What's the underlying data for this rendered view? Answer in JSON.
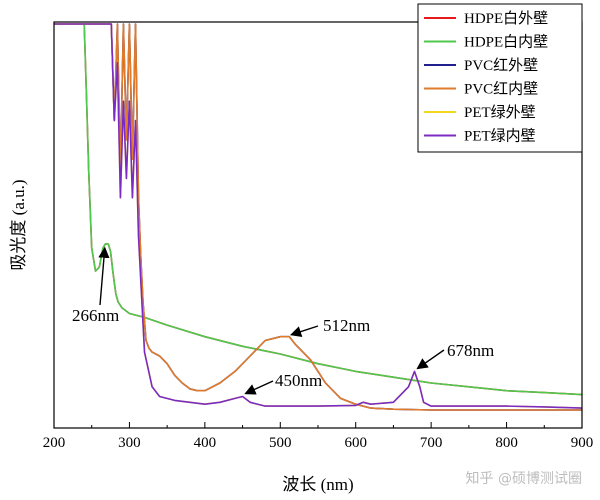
{
  "chart_data": {
    "type": "line",
    "title": "",
    "xlabel": "波长 (nm)",
    "ylabel": "吸光度 (a.u.)",
    "xlim": [
      200,
      900
    ],
    "ylim": [
      0,
      1
    ],
    "xticks": [
      200,
      300,
      400,
      500,
      600,
      700,
      800,
      900
    ],
    "legend_position": "top-right",
    "series": [
      {
        "name": "HDPE白外壁",
        "color": "#e41a1c",
        "x": [
          240,
          243,
          246,
          250,
          255,
          260,
          265,
          268,
          270,
          272,
          275,
          278,
          280,
          282,
          285,
          290,
          300,
          320,
          350,
          400,
          450,
          500,
          550,
          600,
          650,
          700,
          750,
          800,
          850,
          900
        ],
        "y": [
          1.0,
          0.82,
          0.62,
          0.42,
          0.36,
          0.37,
          0.42,
          0.43,
          0.43,
          0.43,
          0.41,
          0.36,
          0.33,
          0.3,
          0.28,
          0.265,
          0.25,
          0.24,
          0.22,
          0.19,
          0.165,
          0.145,
          0.12,
          0.1,
          0.085,
          0.07,
          0.06,
          0.05,
          0.045,
          0.04
        ]
      },
      {
        "name": "HDPE白内壁",
        "color": "#4fc84d",
        "x": [
          240,
          243,
          246,
          250,
          255,
          260,
          265,
          268,
          270,
          272,
          275,
          278,
          280,
          282,
          285,
          290,
          300,
          320,
          350,
          400,
          450,
          500,
          550,
          600,
          650,
          700,
          750,
          800,
          850,
          900
        ],
        "y": [
          1.0,
          0.82,
          0.62,
          0.42,
          0.36,
          0.37,
          0.42,
          0.43,
          0.43,
          0.43,
          0.41,
          0.36,
          0.33,
          0.3,
          0.28,
          0.265,
          0.25,
          0.24,
          0.22,
          0.19,
          0.165,
          0.145,
          0.12,
          0.1,
          0.085,
          0.07,
          0.06,
          0.05,
          0.045,
          0.04
        ]
      },
      {
        "name": "PVC红外壁",
        "color": "#1f1f8f",
        "x": [
          200,
          276,
          280,
          284,
          288,
          292,
          296,
          300,
          304,
          308,
          312,
          315,
          318,
          322,
          326,
          330,
          340,
          350,
          360,
          370,
          380,
          390,
          400,
          420,
          440,
          460,
          480,
          500,
          512,
          520,
          540,
          560,
          580,
          600,
          620,
          650,
          700,
          750,
          800,
          850,
          900
        ],
        "y": [
          1.0,
          1.0,
          0.75,
          1.0,
          0.62,
          1.0,
          0.7,
          1.0,
          0.65,
          1.0,
          0.55,
          0.4,
          0.28,
          0.18,
          0.16,
          0.15,
          0.14,
          0.12,
          0.09,
          0.07,
          0.055,
          0.05,
          0.05,
          0.07,
          0.1,
          0.14,
          0.18,
          0.19,
          0.19,
          0.17,
          0.13,
          0.07,
          0.03,
          0.015,
          0.005,
          0.002,
          0.0,
          0.0,
          0.0,
          0.0,
          0.0
        ]
      },
      {
        "name": "PVC红内壁",
        "color": "#e07b2b",
        "x": [
          200,
          276,
          280,
          284,
          288,
          292,
          296,
          300,
          304,
          308,
          312,
          315,
          318,
          322,
          326,
          330,
          340,
          350,
          360,
          370,
          380,
          390,
          400,
          420,
          440,
          460,
          480,
          500,
          512,
          520,
          540,
          560,
          580,
          600,
          620,
          650,
          700,
          750,
          800,
          850,
          900
        ],
        "y": [
          1.0,
          1.0,
          0.75,
          1.0,
          0.62,
          1.0,
          0.7,
          1.0,
          0.65,
          1.0,
          0.55,
          0.4,
          0.28,
          0.18,
          0.16,
          0.15,
          0.14,
          0.12,
          0.09,
          0.07,
          0.055,
          0.05,
          0.05,
          0.07,
          0.1,
          0.14,
          0.18,
          0.19,
          0.19,
          0.17,
          0.13,
          0.07,
          0.03,
          0.015,
          0.005,
          0.002,
          0.0,
          0.0,
          0.0,
          0.0,
          0.0
        ]
      },
      {
        "name": "PET绿外壁",
        "color": "#f4d61a",
        "x": [
          200,
          276,
          280,
          284,
          288,
          292,
          296,
          300,
          304,
          308,
          312,
          316,
          320,
          330,
          340,
          360,
          380,
          400,
          420,
          440,
          450,
          460,
          480,
          500,
          550,
          600,
          610,
          620,
          650,
          670,
          678,
          685,
          690,
          700,
          750,
          800,
          850,
          900
        ],
        "y": [
          1.0,
          1.0,
          0.75,
          0.9,
          0.55,
          0.8,
          0.6,
          0.8,
          0.55,
          0.75,
          0.45,
          0.3,
          0.15,
          0.06,
          0.035,
          0.025,
          0.02,
          0.015,
          0.02,
          0.03,
          0.035,
          0.02,
          0.01,
          0.01,
          0.01,
          0.012,
          0.02,
          0.015,
          0.02,
          0.06,
          0.1,
          0.06,
          0.02,
          0.01,
          0.01,
          0.01,
          0.008,
          0.005
        ]
      },
      {
        "name": "PET绿内壁",
        "color": "#7b2bc4",
        "x": [
          200,
          276,
          280,
          284,
          288,
          292,
          296,
          300,
          304,
          308,
          312,
          316,
          320,
          330,
          340,
          360,
          380,
          400,
          420,
          440,
          450,
          460,
          480,
          500,
          550,
          600,
          610,
          620,
          650,
          670,
          678,
          685,
          690,
          700,
          750,
          800,
          850,
          900
        ],
        "y": [
          1.0,
          1.0,
          0.75,
          0.9,
          0.55,
          0.8,
          0.6,
          0.8,
          0.55,
          0.75,
          0.45,
          0.3,
          0.15,
          0.06,
          0.035,
          0.025,
          0.02,
          0.015,
          0.02,
          0.03,
          0.035,
          0.02,
          0.01,
          0.01,
          0.01,
          0.012,
          0.02,
          0.015,
          0.02,
          0.06,
          0.1,
          0.06,
          0.02,
          0.01,
          0.01,
          0.01,
          0.008,
          0.005
        ]
      }
    ],
    "annotations": [
      {
        "text": "266nm",
        "x": 266,
        "y": 0.43
      },
      {
        "text": "512nm",
        "x": 512,
        "y": 0.19
      },
      {
        "text": "450nm",
        "x": 450,
        "y": 0.035
      },
      {
        "text": "678nm",
        "x": 678,
        "y": 0.1
      }
    ]
  },
  "watermark": "知乎 @硕博测试圈"
}
